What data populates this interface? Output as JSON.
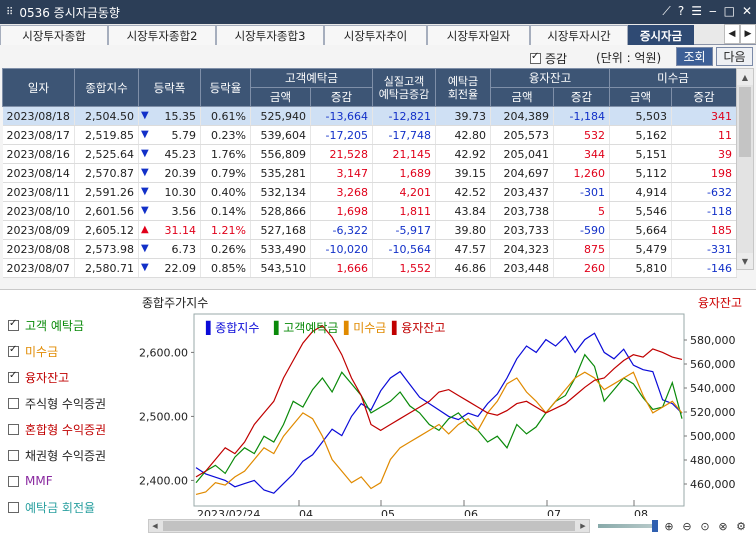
{
  "window": {
    "title": "0536 증시자금동향",
    "icons": [
      "pin-icon",
      "help-icon",
      "menu-icon",
      "minimize-icon",
      "maximize-icon",
      "close-icon"
    ]
  },
  "tabs": [
    {
      "label": "시장투자종합",
      "active": false
    },
    {
      "label": "시장투자종합2",
      "active": false
    },
    {
      "label": "시장투자종합3",
      "active": false
    },
    {
      "label": "시장투자추이",
      "active": false
    },
    {
      "label": "시장투자일자",
      "active": false
    },
    {
      "label": "시장투자시간",
      "active": false
    },
    {
      "label": "증시자금",
      "active": true
    }
  ],
  "options": {
    "increase_label": "증감",
    "increase_checked": true,
    "unit": "(단위 : 억원)",
    "search_label": "조회",
    "next_label": "다음"
  },
  "table": {
    "group_headers": [
      "고객예탁금",
      "실질고객\n예탁금증감",
      "예탁금\n회전율",
      "융자잔고",
      "미수금"
    ],
    "columns": [
      "일자",
      "종합지수",
      "등락폭",
      "등락율",
      "금액",
      "증감",
      "금액",
      "증감",
      "금액",
      "증감"
    ],
    "rows": [
      {
        "date": "2023/08/18",
        "index": "2,504.50",
        "dir": "down",
        "change": "15.35",
        "rate": "0.61%",
        "dep_amt": "525,940",
        "dep_chg": "-13,664",
        "real_chg": "-12,821",
        "turnover": "39.73",
        "loan_amt": "204,389",
        "loan_chg": "-1,184",
        "recv_amt": "5,503",
        "recv_chg": "341"
      },
      {
        "date": "2023/08/17",
        "index": "2,519.85",
        "dir": "down",
        "change": "5.79",
        "rate": "0.23%",
        "dep_amt": "539,604",
        "dep_chg": "-17,205",
        "real_chg": "-17,748",
        "turnover": "42.80",
        "loan_amt": "205,573",
        "loan_chg": "532",
        "recv_amt": "5,162",
        "recv_chg": "11"
      },
      {
        "date": "2023/08/16",
        "index": "2,525.64",
        "dir": "down",
        "change": "45.23",
        "rate": "1.76%",
        "dep_amt": "556,809",
        "dep_chg": "21,528",
        "real_chg": "21,145",
        "turnover": "42.92",
        "loan_amt": "205,041",
        "loan_chg": "344",
        "recv_amt": "5,151",
        "recv_chg": "39"
      },
      {
        "date": "2023/08/14",
        "index": "2,570.87",
        "dir": "down",
        "change": "20.39",
        "rate": "0.79%",
        "dep_amt": "535,281",
        "dep_chg": "3,147",
        "real_chg": "1,689",
        "turnover": "39.15",
        "loan_amt": "204,697",
        "loan_chg": "1,260",
        "recv_amt": "5,112",
        "recv_chg": "198"
      },
      {
        "date": "2023/08/11",
        "index": "2,591.26",
        "dir": "down",
        "change": "10.30",
        "rate": "0.40%",
        "dep_amt": "532,134",
        "dep_chg": "3,268",
        "real_chg": "4,201",
        "turnover": "42.52",
        "loan_amt": "203,437",
        "loan_chg": "-301",
        "recv_amt": "4,914",
        "recv_chg": "-632"
      },
      {
        "date": "2023/08/10",
        "index": "2,601.56",
        "dir": "down",
        "change": "3.56",
        "rate": "0.14%",
        "dep_amt": "528,866",
        "dep_chg": "1,698",
        "real_chg": "1,811",
        "turnover": "43.84",
        "loan_amt": "203,738",
        "loan_chg": "5",
        "recv_amt": "5,546",
        "recv_chg": "-118"
      },
      {
        "date": "2023/08/09",
        "index": "2,605.12",
        "dir": "up",
        "change": "31.14",
        "rate": "1.21%",
        "dep_amt": "527,168",
        "dep_chg": "-6,322",
        "real_chg": "-5,917",
        "turnover": "39.80",
        "loan_amt": "203,733",
        "loan_chg": "-590",
        "recv_amt": "5,664",
        "recv_chg": "185"
      },
      {
        "date": "2023/08/08",
        "index": "2,573.98",
        "dir": "down",
        "change": "6.73",
        "rate": "0.26%",
        "dep_amt": "533,490",
        "dep_chg": "-10,020",
        "real_chg": "-10,564",
        "turnover": "47.57",
        "loan_amt": "204,323",
        "loan_chg": "875",
        "recv_amt": "5,479",
        "recv_chg": "-331"
      },
      {
        "date": "2023/08/07",
        "index": "2,580.71",
        "dir": "down",
        "change": "22.09",
        "rate": "0.85%",
        "dep_amt": "543,510",
        "dep_chg": "1,666",
        "real_chg": "1,552",
        "turnover": "46.86",
        "loan_amt": "203,448",
        "loan_chg": "260",
        "recv_amt": "5,810",
        "recv_chg": "-146"
      }
    ]
  },
  "legend_panel": [
    {
      "label": "고객 예탁금",
      "checked": true,
      "color": "#0a8a0a"
    },
    {
      "label": "미수금",
      "checked": true,
      "color": "#e08a00"
    },
    {
      "label": "융자잔고",
      "checked": true,
      "color": "#c00000"
    },
    {
      "label": "주식형 수익증권",
      "checked": false,
      "color": "#222222"
    },
    {
      "label": "혼합형 수익증권",
      "checked": false,
      "color": "#c00000"
    },
    {
      "label": "채권형 수익증권",
      "checked": false,
      "color": "#222222"
    },
    {
      "label": "MMF",
      "checked": false,
      "color": "#8a2aa0"
    },
    {
      "label": "예탁금 회전율",
      "checked": false,
      "color": "#2aa0a0"
    }
  ],
  "chart_data": {
    "type": "line",
    "title": "종합주가지수",
    "right_title": "융자잔고",
    "x_labels": [
      "2023/02/24",
      "04",
      "05",
      "06",
      "07",
      "08"
    ],
    "y_left_ticks": [
      "2,600.00",
      "2,500.00",
      "2,400.00"
    ],
    "y_right_ticks": [
      "580,000",
      "560,000",
      "540,000",
      "520,000",
      "500,000",
      "480,000",
      "460,000"
    ],
    "series": [
      {
        "name": "종합지수",
        "color": "#0b0bd8",
        "values": [
          2420,
          2410,
          2405,
          2400,
          2390,
          2395,
          2400,
          2385,
          2380,
          2395,
          2410,
          2430,
          2440,
          2460,
          2480,
          2470,
          2500,
          2520,
          2510,
          2540,
          2560,
          2570,
          2550,
          2530,
          2520,
          2510,
          2500,
          2495,
          2505,
          2500,
          2520,
          2535,
          2560,
          2590,
          2610,
          2600,
          2620,
          2610,
          2625,
          2600,
          2620,
          2630,
          2600,
          2590,
          2605,
          2580,
          2573,
          2570,
          2526,
          2520,
          2505
        ]
      },
      {
        "name": "고객예탁금",
        "color": "#0a8a0a",
        "values": [
          470,
          480,
          485,
          478,
          492,
          500,
          495,
          510,
          505,
          520,
          540,
          535,
          550,
          560,
          548,
          565,
          555,
          545,
          530,
          535,
          540,
          548,
          536,
          530,
          520,
          515,
          525,
          530,
          520,
          515,
          505,
          510,
          500,
          520,
          512,
          518,
          530,
          540,
          545,
          560,
          580,
          570,
          540,
          550,
          560,
          555,
          543,
          533,
          535,
          556,
          525
        ]
      },
      {
        "name": "미수금",
        "color": "#e08a00",
        "values": [
          460,
          462,
          470,
          468,
          475,
          480,
          490,
          500,
          495,
          510,
          520,
          530,
          525,
          510,
          490,
          480,
          470,
          475,
          465,
          470,
          490,
          500,
          505,
          510,
          515,
          520,
          512,
          520,
          525,
          515,
          530,
          540,
          555,
          560,
          548,
          540,
          530,
          540,
          550,
          560,
          565,
          560,
          550,
          555,
          560,
          565,
          545,
          530,
          535,
          540,
          530
        ]
      },
      {
        "name": "융자잔고",
        "color": "#c00000",
        "values": [
          475,
          480,
          490,
          500,
          495,
          505,
          520,
          530,
          540,
          560,
          575,
          590,
          600,
          605,
          595,
          580,
          560,
          545,
          520,
          515,
          520,
          525,
          530,
          535,
          540,
          548,
          550,
          545,
          540,
          535,
          530,
          528,
          532,
          538,
          540,
          535,
          530,
          534,
          538,
          545,
          552,
          558,
          560,
          568,
          575,
          580,
          578,
          585,
          582,
          578,
          576
        ]
      }
    ]
  },
  "zoom_tools": [
    "zoom-in-icon",
    "zoom-out-icon",
    "zoom-reset-icon",
    "zoom-fit-icon",
    "settings-icon"
  ]
}
